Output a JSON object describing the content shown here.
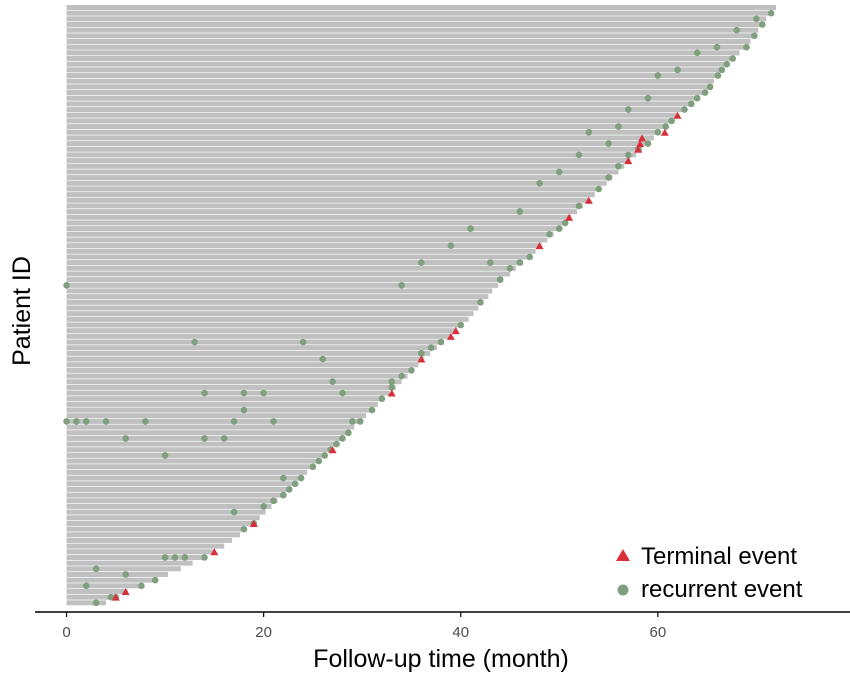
{
  "chart_data": {
    "type": "scatter",
    "xlabel": "Follow-up time (month)",
    "ylabel": "Patient ID",
    "xlim": [
      -3.2,
      79.5
    ],
    "x_ticks": [
      0,
      20,
      40,
      60
    ],
    "grid": false,
    "legend_position": "bottom-right",
    "colors": {
      "bar": "#c0c0c0",
      "terminal": "#d7303b",
      "recurrent": "#7f9f7f",
      "axis": "#000000",
      "tick_label": "#4d4d4d"
    },
    "legend": [
      {
        "label": "Terminal event",
        "marker": "triangle",
        "color": "#d7303b"
      },
      {
        "label": "recurrent event",
        "marker": "circle",
        "color": "#7f9f7f"
      }
    ],
    "follow_up_times": [
      72.0,
      71.5,
      71.0,
      70.6,
      70.2,
      69.8,
      69.4,
      69.0,
      68.3,
      67.6,
      67.0,
      66.5,
      66.1,
      65.7,
      65.3,
      64.8,
      64.0,
      63.4,
      62.7,
      62.0,
      61.4,
      60.8,
      60.2,
      59.6,
      59.0,
      58.4,
      57.8,
      57.2,
      56.6,
      56.0,
      55.4,
      54.8,
      54.2,
      53.6,
      53.0,
      52.4,
      51.8,
      51.2,
      50.6,
      50.0,
      49.4,
      48.8,
      48.2,
      47.6,
      47.0,
      46.3,
      45.6,
      45.0,
      44.3,
      43.8,
      43.2,
      42.8,
      42.3,
      41.8,
      41.3,
      40.8,
      40.2,
      39.6,
      39.0,
      38.3,
      37.6,
      36.9,
      36.3,
      35.7,
      35.2,
      34.6,
      34.0,
      33.4,
      32.8,
      32.2,
      31.6,
      31.0,
      30.4,
      29.8,
      29.2,
      28.6,
      28.0,
      27.4,
      26.8,
      26.2,
      25.6,
      25.0,
      24.4,
      23.8,
      23.2,
      22.6,
      22.0,
      21.4,
      20.8,
      20.2,
      19.6,
      19.0,
      18.3,
      17.6,
      16.8,
      16.0,
      15.0,
      14.0,
      12.8,
      11.6,
      10.3,
      9.0,
      7.6,
      6.2,
      5.0,
      4.0
    ],
    "terminal_events": [
      [
        5,
        5.0
      ],
      [
        6,
        6.2
      ],
      [
        15,
        15.0
      ],
      [
        19,
        19.0
      ],
      [
        27,
        27.0
      ],
      [
        33,
        32.8
      ],
      [
        36,
        36.0
      ],
      [
        39,
        39.0
      ],
      [
        39.5,
        39.6
      ],
      [
        48,
        48.2
      ],
      [
        51,
        51.2
      ],
      [
        53,
        53.0
      ],
      [
        57,
        57.2
      ],
      [
        58,
        58.4
      ],
      [
        58.2,
        59.0
      ],
      [
        58.4,
        59.6
      ],
      [
        60.7,
        60.2
      ],
      [
        62,
        62.0
      ]
    ],
    "recurrent_events": [
      [
        3,
        4.0
      ],
      [
        4.5,
        4.6
      ],
      [
        5.5,
        5.4
      ],
      [
        9,
        7.6
      ],
      [
        12,
        9.0
      ],
      [
        18,
        18.3
      ],
      [
        19,
        19.0
      ],
      [
        20,
        20.8
      ],
      [
        21,
        21.4
      ],
      [
        22,
        22.0
      ],
      [
        23,
        22.6
      ],
      [
        24,
        23.2
      ],
      [
        26,
        25.0
      ],
      [
        27,
        25.6
      ],
      [
        27,
        26.8
      ],
      [
        28,
        27.4
      ],
      [
        29,
        28.6
      ],
      [
        30,
        29.8
      ],
      [
        31,
        31.0
      ],
      [
        32,
        32.2
      ],
      [
        33,
        33.4
      ],
      [
        34,
        34.6
      ],
      [
        35,
        35.2
      ],
      [
        36,
        36.9
      ],
      [
        37,
        37.6
      ],
      [
        38,
        38.3
      ],
      [
        40,
        40.2
      ],
      [
        42,
        42.3
      ],
      [
        44,
        44.3
      ],
      [
        45,
        45.6
      ],
      [
        46,
        46.3
      ],
      [
        47,
        47.0
      ],
      [
        49,
        49.4
      ],
      [
        50,
        50.0
      ],
      [
        51,
        50.6
      ],
      [
        52,
        52.4
      ],
      [
        54,
        54.2
      ],
      [
        55,
        55.4
      ],
      [
        56,
        56.6
      ],
      [
        57,
        57.8
      ],
      [
        58,
        58.4
      ],
      [
        59,
        59.0
      ],
      [
        60,
        60.2
      ],
      [
        61,
        60.8
      ],
      [
        62,
        61.4
      ],
      [
        63,
        62.7
      ],
      [
        64,
        63.4
      ],
      [
        65,
        64.0
      ],
      [
        66,
        64.8
      ],
      [
        67,
        65.3
      ],
      [
        68,
        66.1
      ],
      [
        69,
        66.5
      ],
      [
        70,
        67.0
      ],
      [
        70.5,
        67.6
      ],
      [
        71,
        69.0
      ],
      [
        71.5,
        69.8
      ],
      [
        0,
        44.0
      ],
      [
        0,
        30.0
      ],
      [
        1,
        30.0
      ],
      [
        2,
        30.0
      ],
      [
        3,
        12.0
      ],
      [
        2,
        8.0
      ],
      [
        4,
        30.0
      ],
      [
        6,
        28.0
      ],
      [
        6,
        10.0
      ],
      [
        8,
        30.0
      ],
      [
        10,
        26.0
      ],
      [
        10,
        14.0
      ],
      [
        11,
        14.0
      ],
      [
        12,
        14.0
      ],
      [
        13,
        38.0
      ],
      [
        14,
        33.0
      ],
      [
        14,
        28.0
      ],
      [
        16,
        28.0
      ],
      [
        17,
        30.0
      ],
      [
        18,
        31.0
      ],
      [
        18,
        33.0
      ],
      [
        17,
        20.0
      ],
      [
        16,
        14.0
      ],
      [
        20,
        33.0
      ],
      [
        21,
        30.0
      ],
      [
        22,
        24.0
      ],
      [
        24,
        38.0
      ],
      [
        26,
        36.0
      ],
      [
        27,
        34.0
      ],
      [
        28,
        33.0
      ],
      [
        29,
        30.0
      ],
      [
        30,
        28.0
      ],
      [
        31,
        24.0
      ],
      [
        32,
        22.0
      ],
      [
        33,
        34.0
      ],
      [
        36,
        37.0
      ],
      [
        37,
        30.0
      ],
      [
        38,
        26.0
      ],
      [
        34,
        44.0
      ],
      [
        36,
        46.0
      ],
      [
        39,
        48.0
      ],
      [
        41,
        50.0
      ],
      [
        43,
        46.0
      ],
      [
        46,
        52.0
      ],
      [
        48,
        55.0
      ],
      [
        50,
        56.0
      ],
      [
        52,
        58.0
      ],
      [
        53,
        60.0
      ],
      [
        55,
        59.0
      ],
      [
        56,
        61.0
      ],
      [
        57,
        63.0
      ],
      [
        59,
        64.0
      ],
      [
        60,
        66.0
      ],
      [
        62,
        66.5
      ],
      [
        64,
        68.0
      ],
      [
        66,
        69.0
      ],
      [
        68,
        70.0
      ],
      [
        70,
        71.0
      ],
      [
        71,
        70.6
      ],
      [
        72,
        71.5
      ]
    ]
  }
}
